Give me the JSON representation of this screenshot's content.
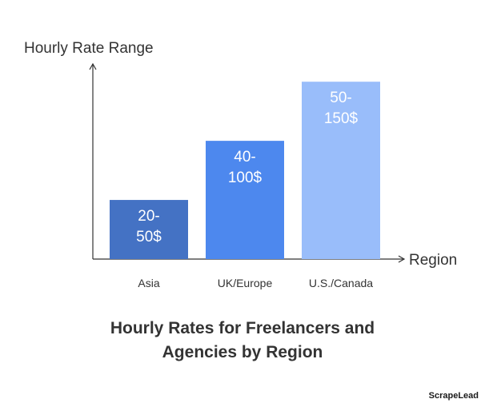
{
  "chart_data": {
    "type": "bar",
    "title": "Hourly Rates for Freelancers and\nAgencies by Region",
    "xlabel": "Region",
    "ylabel": "Hourly Rate Range",
    "categories": [
      "Asia",
      "UK/Europe",
      "U.S./Canada"
    ],
    "ranges": [
      [
        20,
        50
      ],
      [
        40,
        100
      ],
      [
        50,
        150
      ]
    ],
    "values": [
      50,
      100,
      150
    ],
    "data_labels": [
      "20-\n50$",
      "40-\n100$",
      "50-\n150$"
    ],
    "colors": [
      "#4472c4",
      "#4d88ee",
      "#99bdfa"
    ],
    "ylim": [
      0,
      165
    ],
    "grid": false,
    "legend": "none"
  },
  "brand": "ScrapeLead"
}
